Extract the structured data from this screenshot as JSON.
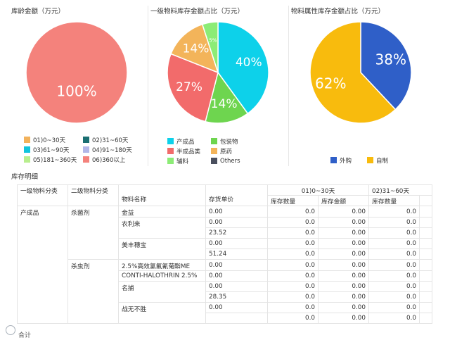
{
  "charts": {
    "age": {
      "title": "库龄金额（万元）",
      "slices": [
        {
          "label": "100%",
          "value": 100,
          "color": "#f4827c"
        }
      ],
      "legend": [
        {
          "label": "01)0~30天",
          "color": "#f2b25c"
        },
        {
          "label": "02)31~60天",
          "color": "#1b6f72"
        },
        {
          "label": "03)61~90天",
          "color": "#11c4dc"
        },
        {
          "label": "04)91~180天",
          "color": "#b2b7e8"
        },
        {
          "label": "05)181~360天",
          "color": "#b8ee8e"
        },
        {
          "label": "06)360以上",
          "color": "#f4827c"
        }
      ]
    },
    "category": {
      "title": "一级物料库存金额占比（万元）",
      "slices": [
        {
          "label": "40%",
          "value": 40,
          "color": "#0dd1ea"
        },
        {
          "label": "14%",
          "value": 14,
          "color": "#6ed54f"
        },
        {
          "label": "27%",
          "value": 27,
          "color": "#f26b6b"
        },
        {
          "label": "14%",
          "value": 14,
          "color": "#f3b45a"
        },
        {
          "label": "5%",
          "value": 5,
          "color": "#8cec76"
        }
      ],
      "legend": [
        {
          "label": "产成品",
          "color": "#0dd1ea"
        },
        {
          "label": "包装物",
          "color": "#6ed54f"
        },
        {
          "label": "半成品类",
          "color": "#f26b6b"
        },
        {
          "label": "原药",
          "color": "#f3b45a"
        },
        {
          "label": "辅料",
          "color": "#8cec76"
        },
        {
          "label": "Others",
          "color": "#4a4f5e"
        }
      ]
    },
    "attribute": {
      "title": "物料属性库存金额占比（万元）",
      "slices": [
        {
          "label": "38%",
          "value": 38,
          "color": "#2f5fc8"
        },
        {
          "label": "62%",
          "value": 62,
          "color": "#f8bb0d"
        }
      ],
      "legend": [
        {
          "label": "外购",
          "color": "#2f5fc8"
        },
        {
          "label": "自制",
          "color": "#f8bb0d"
        }
      ]
    }
  },
  "section": {
    "title": "库存明细"
  },
  "table": {
    "headers": {
      "cat1": "一级物料分类",
      "cat2": "二级物料分类",
      "name": "物料名称",
      "price": "存货单价",
      "group1": "01)0~30天",
      "group2": "02)31~60天",
      "qty": "库存数量",
      "amount": "库存金额",
      "qty2": "库存数量"
    },
    "rows": [
      {
        "cat1": "产成品",
        "cat2": "杀菌剂",
        "name": "金益",
        "price": "0.00",
        "qty": "0.0",
        "amount": "0.00",
        "qty2": "0.0"
      },
      {
        "cat1": "",
        "cat2": "",
        "name": "农利来",
        "price": "0.00",
        "qty": "0.0",
        "amount": "0.00",
        "qty2": "0.0"
      },
      {
        "cat1": "",
        "cat2": "",
        "name": "",
        "price": "23.52",
        "qty": "0.0",
        "amount": "0.00",
        "qty2": "0.0"
      },
      {
        "cat1": "",
        "cat2": "",
        "name": "美丰穗宝",
        "price": "0.00",
        "qty": "0.0",
        "amount": "0.00",
        "qty2": "0.0"
      },
      {
        "cat1": "",
        "cat2": "",
        "name": "",
        "price": "51.24",
        "qty": "0.0",
        "amount": "0.00",
        "qty2": "0.0"
      },
      {
        "cat1": "",
        "cat2": "杀虫剂",
        "name": "2.5%高效氯氟氰菊酯ME",
        "price": "0.00",
        "qty": "0.0",
        "amount": "0.00",
        "qty2": "0.0"
      },
      {
        "cat1": "",
        "cat2": "",
        "name": "CONTI-HALOTHRIN 2.5%",
        "price": "0.00",
        "qty": "0.0",
        "amount": "0.00",
        "qty2": "0.0"
      },
      {
        "cat1": "",
        "cat2": "",
        "name": "名捕",
        "price": "0.00",
        "qty": "0.0",
        "amount": "0.00",
        "qty2": "0.0"
      },
      {
        "cat1": "",
        "cat2": "",
        "name": "",
        "price": "28.35",
        "qty": "0.0",
        "amount": "0.00",
        "qty2": "0.0"
      },
      {
        "cat1": "",
        "cat2": "",
        "name": "战无不胜",
        "price": "0.00",
        "qty": "0.0",
        "amount": "0.00",
        "qty2": "0.0"
      },
      {
        "cat1": "",
        "cat2": "",
        "name": "",
        "price": "",
        "qty": "0.0",
        "amount": "0.00",
        "qty2": "0.0"
      }
    ],
    "total_label": "合计"
  }
}
